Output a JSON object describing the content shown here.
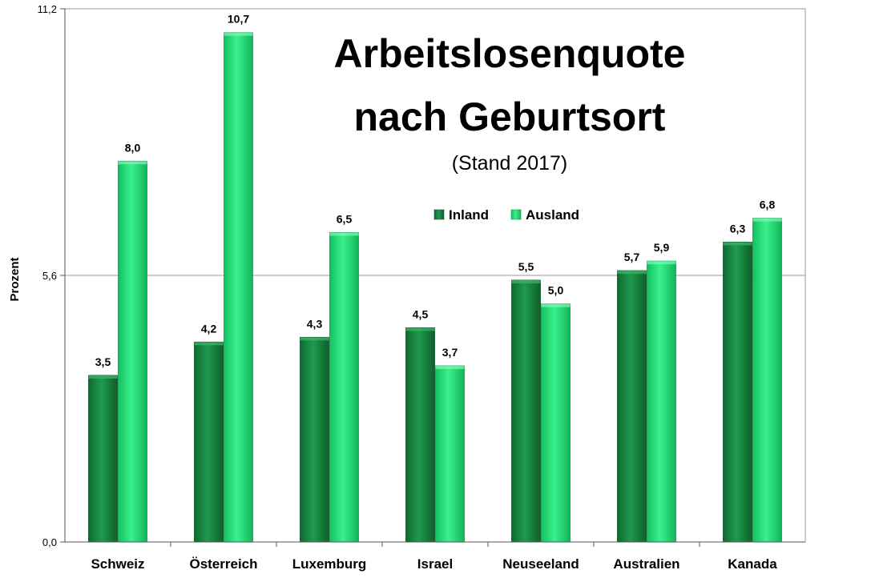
{
  "chart_data": {
    "type": "bar",
    "title_lines": [
      "Arbeitslosenquote",
      "nach Geburtsort"
    ],
    "subtitle": "(Stand 2017)",
    "xlabel": "",
    "ylabel": "Prozent",
    "ylim": [
      0,
      11.2
    ],
    "yticks": [
      "0,0",
      "5,6",
      "11,2"
    ],
    "ytick_values": [
      0,
      5.6,
      11.2
    ],
    "grid": true,
    "legend_placement": "top-center",
    "categories": [
      "Schweiz",
      "Österreich",
      "Luxemburg",
      "Israel",
      "Neuseeland",
      "Australien",
      "Kanada"
    ],
    "series": [
      {
        "name": "Inland",
        "color": "#1a8a44",
        "values": [
          3.5,
          4.2,
          4.3,
          4.5,
          5.5,
          5.7,
          6.3
        ],
        "labels": [
          "3,5",
          "4,2",
          "4,3",
          "4,5",
          "5,5",
          "5,7",
          "6,3"
        ]
      },
      {
        "name": "Ausland",
        "color": "#22dd77",
        "values": [
          8.0,
          10.7,
          6.5,
          3.7,
          5.0,
          5.9,
          6.8
        ],
        "labels": [
          "8,0",
          "10,7",
          "6,5",
          "3,7",
          "5,0",
          "5,9",
          "6,8"
        ]
      }
    ]
  }
}
